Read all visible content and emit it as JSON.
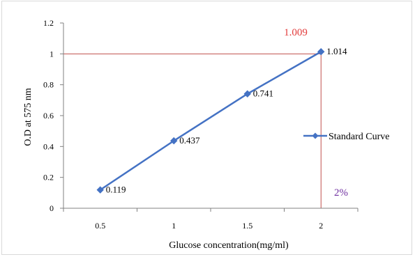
{
  "chart_data": {
    "type": "line",
    "title": "",
    "xlabel": "Glucose concentration(mg/ml)",
    "ylabel": "O.D at 575 nm",
    "x_ticks": [
      "0.5",
      "1",
      "1.5",
      "2"
    ],
    "y_ticks": [
      "0",
      "0.2",
      "0.4",
      "0.6",
      "0.8",
      "1",
      "1.2"
    ],
    "xlim": [
      0.25,
      2.25
    ],
    "ylim": [
      0,
      1.2
    ],
    "grid": false,
    "legend_position": "right",
    "series": [
      {
        "name": "Standard Curve",
        "color": "#4472c4",
        "x": [
          0.5,
          1,
          1.5,
          2
        ],
        "y": [
          0.119,
          0.437,
          0.741,
          1.014
        ],
        "labels": [
          "0.119",
          "0.437",
          "0.741",
          "1.014"
        ]
      }
    ],
    "annotations": {
      "reference_line_color": "#c0504d",
      "horizontal_reference_y": 1.0,
      "vertical_reference_x": 2,
      "value_label": "1.009",
      "value_label_color": "#e23a3a",
      "percent_label": "2%",
      "percent_label_color": "#7030a0"
    }
  }
}
